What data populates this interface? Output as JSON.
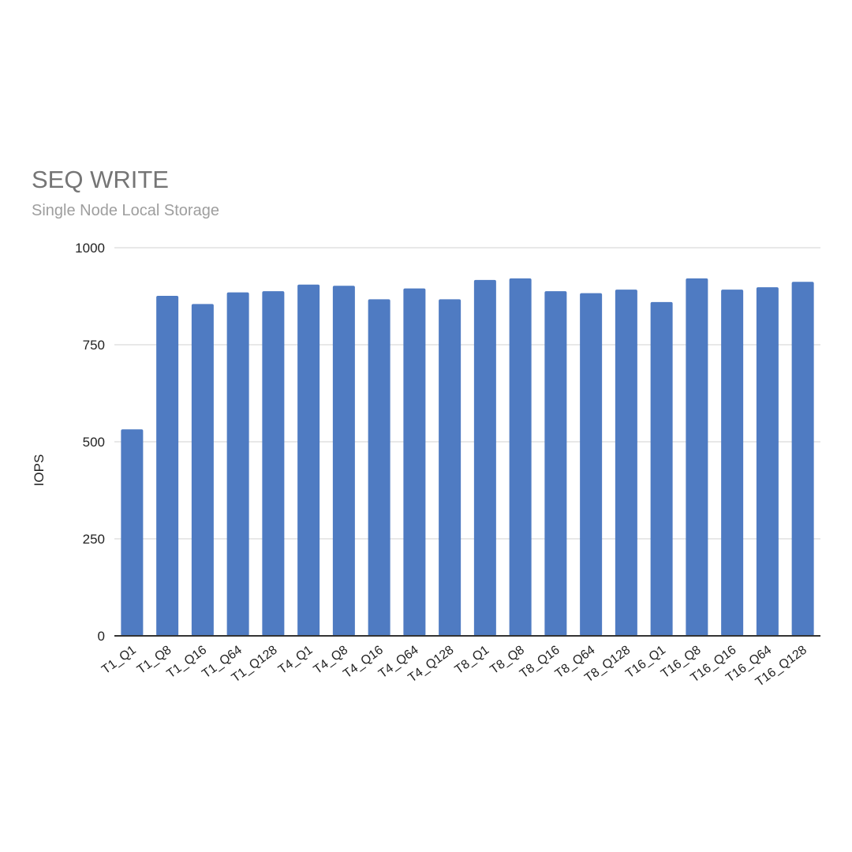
{
  "chart_data": {
    "type": "bar",
    "title": "SEQ WRITE",
    "subtitle": "Single Node Local Storage",
    "ylabel": "IOPS",
    "ylim": [
      0,
      1000
    ],
    "yticks": [
      0,
      250,
      500,
      750,
      1000
    ],
    "grid": true,
    "bar_color": "#4f7bc2",
    "categories": [
      "T1_Q1",
      "T1_Q8",
      "T1_Q16",
      "T1_Q64",
      "T1_Q128",
      "T4_Q1",
      "T4_Q8",
      "T4_Q16",
      "T4_Q64",
      "T4_Q128",
      "T8_Q1",
      "T8_Q8",
      "T8_Q16",
      "T8_Q64",
      "T8_Q128",
      "T16_Q1",
      "T16_Q8",
      "T16_Q16",
      "T16_Q64",
      "T16_Q128"
    ],
    "values": [
      532,
      876,
      855,
      885,
      888,
      905,
      902,
      867,
      895,
      867,
      917,
      921,
      888,
      883,
      892,
      860,
      921,
      892,
      898,
      912
    ]
  }
}
